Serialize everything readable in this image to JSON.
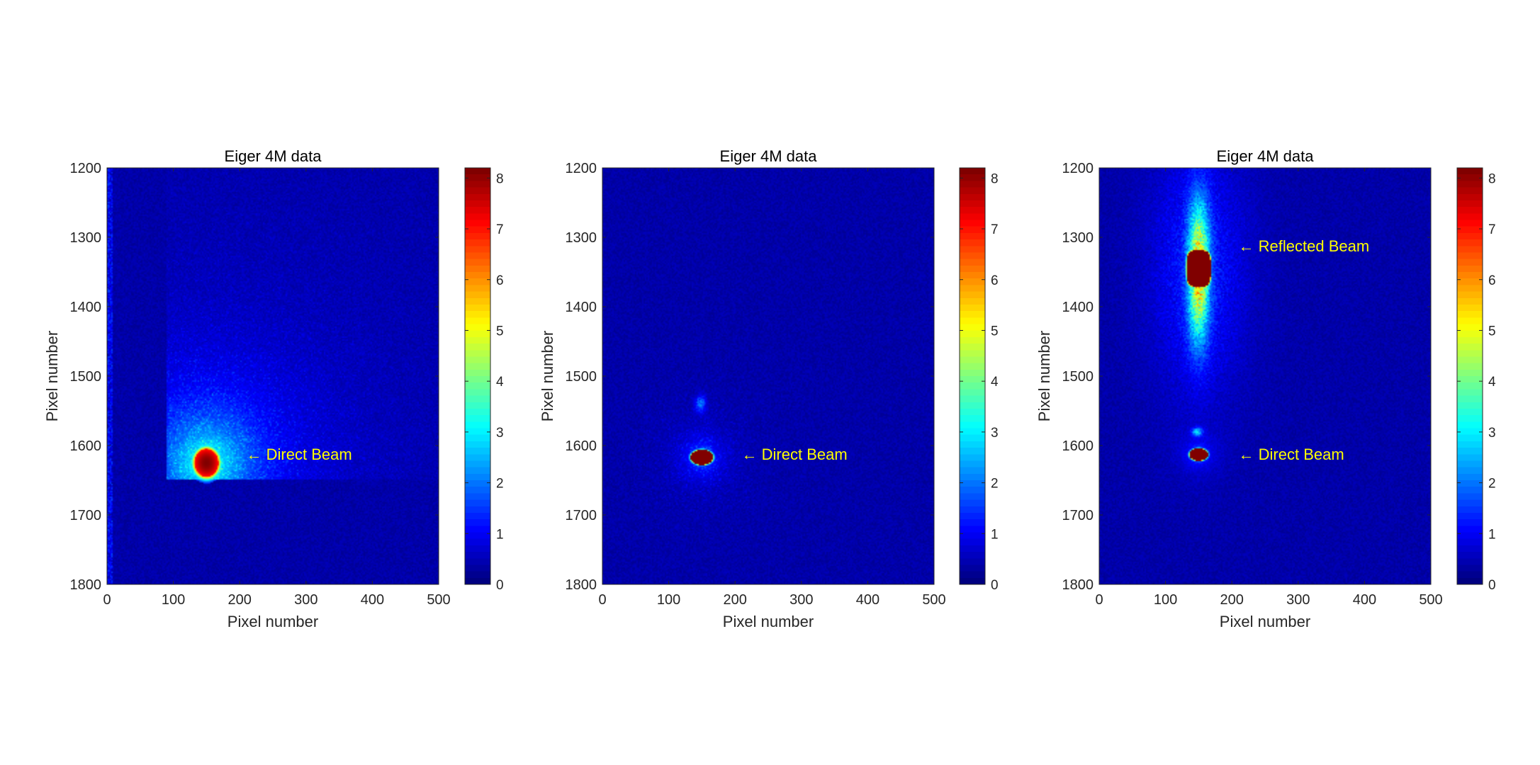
{
  "chart_data": [
    {
      "type": "heatmap",
      "title": "Eiger 4M data",
      "xlabel": "Pixel number",
      "ylabel": "Pixel number",
      "xlim": [
        0,
        500
      ],
      "ylim": [
        1200,
        1800
      ],
      "y_direction": "reversed",
      "x_ticks": [
        0,
        100,
        200,
        300,
        400,
        500
      ],
      "y_ticks": [
        1200,
        1300,
        1400,
        1500,
        1600,
        1700,
        1800
      ],
      "colormap": "jet",
      "clim": [
        0,
        8.2
      ],
      "colorbar_ticks": [
        0,
        1,
        2,
        3,
        4,
        5,
        6,
        7,
        8
      ],
      "annotations": [
        {
          "text": "← Direct Beam",
          "x": 210,
          "y": 1612,
          "color": "#ffff00"
        }
      ],
      "features": [
        {
          "kind": "spot",
          "x": 150,
          "y": 1625,
          "rx": 18,
          "ry": 20,
          "peak": 8.2
        },
        {
          "kind": "diffuse_halo",
          "x": 150,
          "y": 1625,
          "extent_x": [
            90,
            500
          ],
          "extent_y": [
            1250,
            1648
          ]
        }
      ]
    },
    {
      "type": "heatmap",
      "title": "Eiger 4M data",
      "xlabel": "Pixel number",
      "ylabel": "Pixel number",
      "xlim": [
        0,
        500
      ],
      "ylim": [
        1200,
        1800
      ],
      "y_direction": "reversed",
      "x_ticks": [
        0,
        100,
        200,
        300,
        400,
        500
      ],
      "y_ticks": [
        1200,
        1300,
        1400,
        1500,
        1600,
        1700,
        1800
      ],
      "colormap": "jet",
      "clim": [
        0,
        8.2
      ],
      "colorbar_ticks": [
        0,
        1,
        2,
        3,
        4,
        5,
        6,
        7,
        8
      ],
      "annotations": [
        {
          "text": "← Direct Beam",
          "x": 210,
          "y": 1612,
          "color": "#ffff00"
        }
      ],
      "features": [
        {
          "kind": "spot",
          "x": 150,
          "y": 1617,
          "rx": 17,
          "ry": 11,
          "peak": 8.2
        },
        {
          "kind": "weak_spot",
          "x": 148,
          "y": 1540,
          "rx": 8,
          "ry": 12,
          "peak": 1.8
        }
      ]
    },
    {
      "type": "heatmap",
      "title": "Eiger 4M data",
      "xlabel": "Pixel number",
      "ylabel": "Pixel number",
      "xlim": [
        0,
        500
      ],
      "ylim": [
        1200,
        1800
      ],
      "y_direction": "reversed",
      "x_ticks": [
        0,
        100,
        200,
        300,
        400,
        500
      ],
      "y_ticks": [
        1200,
        1300,
        1400,
        1500,
        1600,
        1700,
        1800
      ],
      "colormap": "jet",
      "clim": [
        0,
        8.2
      ],
      "colorbar_ticks": [
        0,
        1,
        2,
        3,
        4,
        5,
        6,
        7,
        8
      ],
      "annotations": [
        {
          "text": "← Reflected Beam",
          "x": 210,
          "y": 1312,
          "color": "#ffff00"
        },
        {
          "text": "← Direct Beam",
          "x": 210,
          "y": 1612,
          "color": "#ffff00"
        }
      ],
      "features": [
        {
          "kind": "spot",
          "x": 150,
          "y": 1345,
          "rx": 18,
          "ry": 26,
          "peak": 8.2
        },
        {
          "kind": "streak",
          "x": 150,
          "y": 1350,
          "extent_y": [
            1200,
            1500
          ],
          "peak": 4.5
        },
        {
          "kind": "spot",
          "x": 150,
          "y": 1613,
          "rx": 14,
          "ry": 9,
          "peak": 8.2
        },
        {
          "kind": "weak_spot",
          "x": 148,
          "y": 1580,
          "rx": 8,
          "ry": 6,
          "peak": 2.5
        }
      ]
    }
  ]
}
